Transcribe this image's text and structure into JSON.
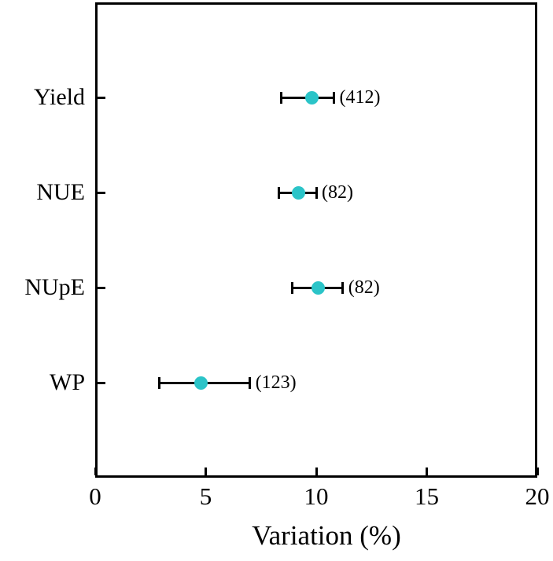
{
  "figure": {
    "background": "#ffffff",
    "axis_color": "#000000",
    "marker_color": "#2BC4C8"
  },
  "chart_data": {
    "type": "scatter",
    "subtype": "horizontal-error-bar-forest-plot",
    "title": "",
    "xlabel": "Variation (%)",
    "ylabel": "",
    "xlim": [
      0,
      20
    ],
    "xticks": [
      "0",
      "5",
      "10",
      "15",
      "20"
    ],
    "xtick_values": [
      0,
      5,
      10,
      15,
      20
    ],
    "grid": false,
    "legend": null,
    "categories": [
      "Yield",
      "NUE",
      "NUpE",
      "WP"
    ],
    "series": [
      {
        "category": "Yield",
        "mean": 9.8,
        "ci_low": 8.4,
        "ci_high": 10.8,
        "count_label": "(412)"
      },
      {
        "category": "NUE",
        "mean": 9.2,
        "ci_low": 8.3,
        "ci_high": 10.0,
        "count_label": "(82)"
      },
      {
        "category": "NUpE",
        "mean": 10.1,
        "ci_low": 8.9,
        "ci_high": 11.2,
        "count_label": "(82)"
      },
      {
        "category": "WP",
        "mean": 4.8,
        "ci_low": 2.9,
        "ci_high": 7.0,
        "count_label": "(123)"
      }
    ]
  }
}
